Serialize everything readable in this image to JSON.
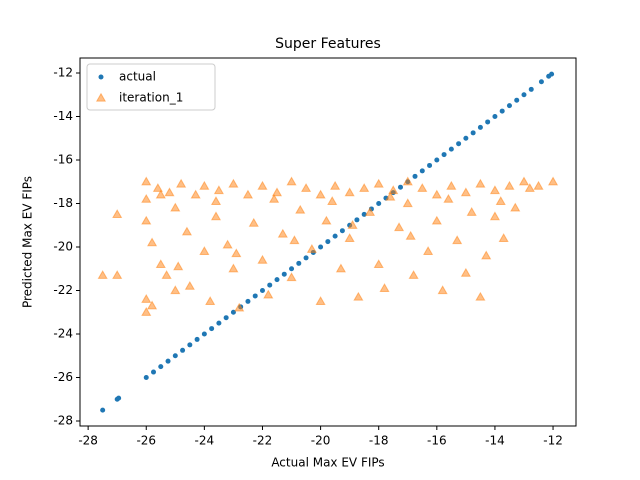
{
  "chart_data": {
    "type": "scatter",
    "title": "Super Features",
    "x_label": "Actual Max EV FIPs",
    "y_label": "Predicted Max EV FIPs",
    "legend": "upper left",
    "xlim": [
      -28.28,
      -11.21
    ],
    "ylim": [
      -28.23,
      -11.31
    ],
    "xticks": [
      -28,
      -26,
      -24,
      -22,
      -20,
      -18,
      -16,
      -14,
      -12
    ],
    "yticks": [
      -28,
      -26,
      -24,
      -22,
      -20,
      -18,
      -16,
      -14,
      -12
    ],
    "series": [
      {
        "name": "actual",
        "color": "#1f77b4",
        "marker": "circle",
        "x": [
          -27.5,
          -27.0,
          -26.95,
          -26.0,
          -25.75,
          -25.5,
          -25.25,
          -25.0,
          -24.75,
          -24.5,
          -24.25,
          -24.0,
          -23.75,
          -23.5,
          -23.25,
          -23.0,
          -22.75,
          -22.5,
          -22.25,
          -22.0,
          -21.75,
          -21.5,
          -21.25,
          -21.0,
          -20.75,
          -20.5,
          -20.25,
          -20.0,
          -19.75,
          -19.5,
          -19.25,
          -19.0,
          -18.75,
          -18.5,
          -18.25,
          -18.0,
          -17.75,
          -17.5,
          -17.25,
          -17.0,
          -16.75,
          -16.5,
          -16.25,
          -16.0,
          -15.75,
          -15.5,
          -15.25,
          -15.0,
          -14.75,
          -14.5,
          -14.25,
          -14.0,
          -13.75,
          -13.5,
          -13.25,
          -13.0,
          -12.75,
          -12.4,
          -12.15,
          -12.05
        ],
        "values": [
          -27.5,
          -27.0,
          -26.95,
          -26.0,
          -25.75,
          -25.5,
          -25.25,
          -25.0,
          -24.75,
          -24.5,
          -24.25,
          -24.0,
          -23.75,
          -23.5,
          -23.25,
          -23.0,
          -22.75,
          -22.5,
          -22.25,
          -22.0,
          -21.75,
          -21.5,
          -21.25,
          -21.0,
          -20.75,
          -20.5,
          -20.25,
          -20.0,
          -19.75,
          -19.5,
          -19.25,
          -19.0,
          -18.75,
          -18.5,
          -18.25,
          -18.0,
          -17.75,
          -17.5,
          -17.25,
          -17.0,
          -16.75,
          -16.5,
          -16.25,
          -16.0,
          -15.75,
          -15.5,
          -15.25,
          -15.0,
          -14.75,
          -14.5,
          -14.25,
          -14.0,
          -13.75,
          -13.5,
          -13.25,
          -13.0,
          -12.75,
          -12.4,
          -12.15,
          -12.05
        ]
      },
      {
        "name": "iteration_1",
        "color": "#ff7f0e",
        "marker": "triangle",
        "x": [
          -27.5,
          -27,
          -27,
          -26,
          -26,
          -26,
          -26,
          -26,
          -25.8,
          -25.8,
          -25.6,
          -25.5,
          -25.3,
          -25.2,
          -25,
          -25,
          -24.8,
          -24.6,
          -24.5,
          -24.3,
          -24,
          -24,
          -23.8,
          -23.6,
          -23.5,
          -23.2,
          -23,
          -23,
          -22.8,
          -22.5,
          -22.3,
          -22,
          -22,
          -21.8,
          -21.5,
          -21.3,
          -21,
          -21,
          -20.7,
          -20.5,
          -20.3,
          -20,
          -20,
          -19.8,
          -19.5,
          -19.3,
          -19,
          -19,
          -18.7,
          -18.5,
          -18.3,
          -18,
          -18,
          -17.8,
          -17.5,
          -17.3,
          -17,
          -17,
          -16.8,
          -16.5,
          -16.3,
          -16,
          -16,
          -15.8,
          -15.5,
          -15.3,
          -15,
          -15,
          -14.8,
          -14.5,
          -14.5,
          -14.3,
          -14,
          -14,
          -13.7,
          -13.5,
          -13.3,
          -13,
          -12.8,
          -12.5,
          -12,
          -13.8,
          -15.6,
          -17.6,
          -19.6,
          -21.6,
          -23.6,
          -25.5,
          -18.9,
          -16.9,
          -20.9,
          -22.9,
          -24.9
        ],
        "values": [
          -21.3,
          -21.3,
          -18.5,
          -17,
          -17.8,
          -18.8,
          -22.4,
          -23,
          -19.8,
          -22.7,
          -17.3,
          -20.8,
          -21.3,
          -17.5,
          -18.2,
          -22.0,
          -17.1,
          -19.3,
          -21.8,
          -17.6,
          -17.2,
          -20.2,
          -22.5,
          -18.6,
          -17.4,
          -19.9,
          -17.1,
          -21.0,
          -22.8,
          -17.6,
          -18.9,
          -17.2,
          -20.6,
          -22.2,
          -17.5,
          -19.4,
          -17.0,
          -21.4,
          -18.3,
          -17.3,
          -20.1,
          -17.6,
          -22.5,
          -18.8,
          -17.2,
          -21.0,
          -17.5,
          -19.6,
          -22.3,
          -17.3,
          -18.4,
          -17.1,
          -20.8,
          -21.9,
          -17.4,
          -19.1,
          -17.0,
          -18.0,
          -21.3,
          -17.3,
          -20.2,
          -17.6,
          -18.8,
          -22.0,
          -17.2,
          -19.7,
          -17.5,
          -21.2,
          -18.4,
          -17.1,
          -22.3,
          -20.4,
          -17.4,
          -18.6,
          -19.6,
          -17.2,
          -18.2,
          -17.0,
          -17.3,
          -17.2,
          -17,
          -17.9,
          -17.8,
          -17.7,
          -17.9,
          -17.8,
          -17.9,
          -17.6,
          -19.0,
          -19.5,
          -19.7,
          -20.3,
          -20.9
        ]
      }
    ]
  }
}
